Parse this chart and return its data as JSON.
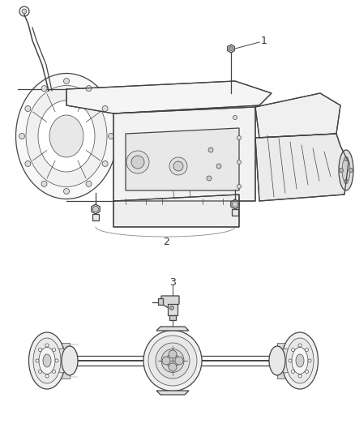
{
  "background_color": "#ffffff",
  "fig_width": 4.38,
  "fig_height": 5.33,
  "dpi": 100,
  "label_1": "1",
  "label_2": "2",
  "label_3": "3",
  "line_color": "#444444",
  "line_color_light": "#888888",
  "text_color": "#333333",
  "font_size": 9,
  "lw_main": 0.9,
  "lw_light": 0.5,
  "lw_heavy": 1.4
}
